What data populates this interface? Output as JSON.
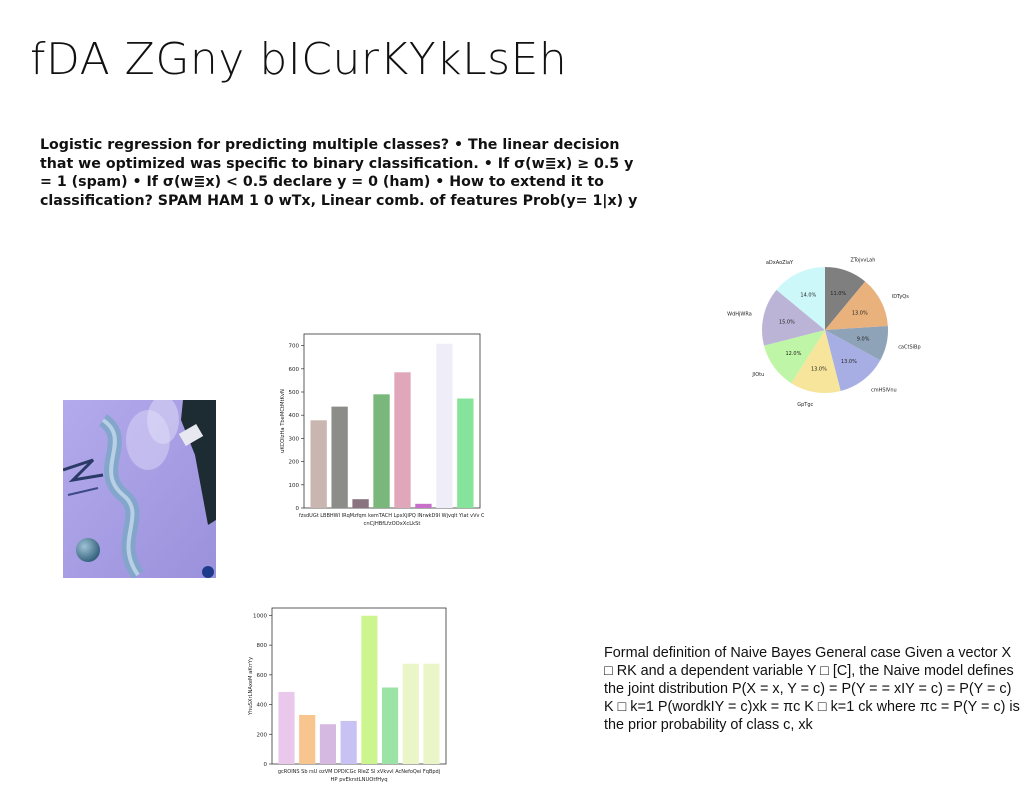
{
  "slide": {
    "title": "fDA ZGny bICurKYkLsEh",
    "bold_text": "Logistic regression for predicting multiple classes? • The linear decision that we optimized was specific to binary classification. • If σ(w≣x) ≥ 0.5 y = 1 (spam) • If σ(w≣x) < 0.5 declare y = 0 (ham) • How to extend it to classification? SPAM HAM 1 0 wTx, Linear comb. of features Prob(y= 1|x) y",
    "plain_text": "Formal definition of Naive Bayes General case Given a vector X □ RK and a dependent variable Y □ [C], the Naive model defines the joint distribution P(X = x, Y = c) = P(Y = = xIY = c) = P(Y = c) K □ k=1 P(wordkIY = c)xk = πc K □ k=1 ck where πc = P(Y = c) is the prior probability of class c, xk"
  },
  "chart_data": [
    {
      "type": "bar",
      "categories": [
        "fzsdUGt",
        "LBBHWI",
        "IRqMzfqm",
        "kemTACH",
        "LpxXjIPQ",
        "lNrwkD9I",
        "Wjvqlt",
        "Ylat vVv O"
      ],
      "values": [
        378,
        437,
        38,
        490,
        585,
        18,
        708,
        472
      ],
      "colors": [
        "#c9b6b0",
        "#8c8c88",
        "#8a7480",
        "#79b77b",
        "#e0a7bb",
        "#c76fcb",
        "#efeef8",
        "#86e39b"
      ],
      "ylabel": "uKCOIzHa TbeMCtMtKvN",
      "xlabel": "cnCJHBfLfzOOxXcLkSt",
      "ylim": [
        0,
        750
      ],
      "yticks": [
        0,
        100,
        200,
        300,
        400,
        500,
        600,
        700
      ]
    },
    {
      "type": "bar",
      "categories": [
        "gcROINS",
        "Sb rsU",
        "ozVM",
        "DPDlCGc",
        "RleZ Sl",
        "xVkvvI",
        "AcNefoQei",
        "FqBpdj"
      ],
      "values": [
        485,
        330,
        268,
        290,
        998,
        515,
        675,
        675
      ],
      "colors": [
        "#eac8ec",
        "#f9c58e",
        "#d6b9e0",
        "#c8c1f3",
        "#cdf58f",
        "#9ce4a6",
        "#eaf6c8",
        "#eaf6c8"
      ],
      "ylabel": "YhuSXrLNAxeM aKrrYy",
      "xlabel": "HP pvEkrstLNUOtfHyq",
      "ylim": [
        0,
        1050
      ],
      "yticks": [
        0,
        200,
        400,
        600,
        800,
        1000
      ]
    },
    {
      "type": "pie",
      "labels": [
        "ZTojvvLah",
        "lDTyQs",
        "caCtSiBp",
        "cmHSlVnu",
        "GpTgc",
        "JlOtu",
        "WdHjWRa",
        "aDxAoZlaY"
      ],
      "values": [
        11.0,
        13.0,
        9.0,
        13.0,
        13.0,
        12.0,
        15.0,
        14.0
      ],
      "pct_labels": [
        "11.0%",
        "13.0%",
        "9.0%",
        "13.0%",
        "13.0%",
        "12.0%",
        "15.0%",
        "14.0%"
      ],
      "colors": [
        "#7f7f7f",
        "#e9b27c",
        "#8ea2b8",
        "#a7aee3",
        "#f6e59a",
        "#bff5a6",
        "#bcb4d6",
        "#cdf8f9"
      ]
    }
  ],
  "photo": {
    "description_icon": "champagne-party-photo",
    "colors": {
      "background": "#a79ee3",
      "ribbon": "#7fa6c9",
      "bottle": "#1d2b33"
    }
  }
}
